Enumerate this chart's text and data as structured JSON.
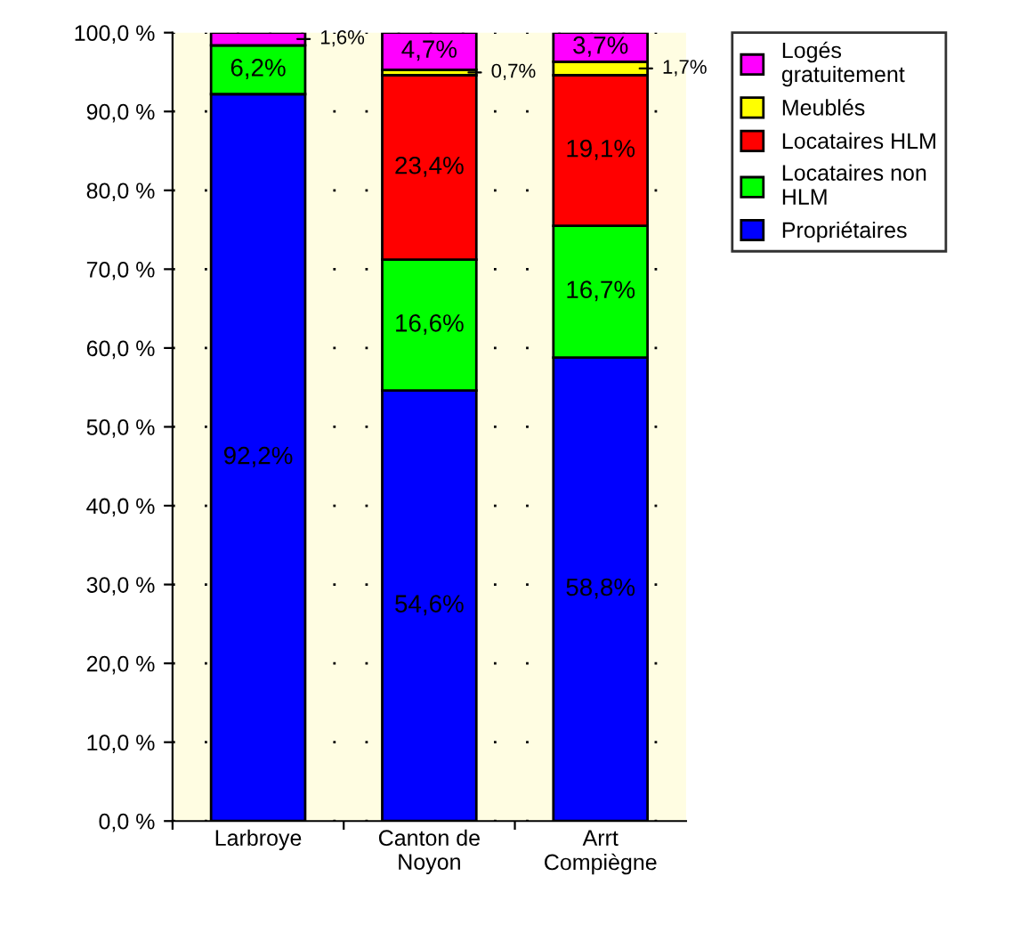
{
  "chart_data": {
    "type": "bar",
    "stacked": true,
    "categories": [
      "Larbroye",
      "Canton de Noyon",
      "Arrt Compiègne"
    ],
    "series": [
      {
        "name": "Propriétaires",
        "color": "#0000ff",
        "values": [
          92.2,
          54.6,
          58.8
        ],
        "value_labels": [
          "92,2%",
          "54,6%",
          "58,8%"
        ]
      },
      {
        "name": "Locataires non HLM",
        "color": "#00ff00",
        "values": [
          6.2,
          16.6,
          16.7
        ],
        "value_labels": [
          "6,2%",
          "16,6%",
          "16,7%"
        ]
      },
      {
        "name": "Locataires HLM",
        "color": "#ff0000",
        "values": [
          0,
          23.4,
          19.1
        ],
        "value_labels": [
          null,
          "23,4%",
          "19,1%"
        ]
      },
      {
        "name": "Meublés",
        "color": "#ffff00",
        "values": [
          0,
          0.7,
          1.7
        ],
        "value_labels": [
          null,
          "0,7%",
          "1,7%"
        ]
      },
      {
        "name": "Logés gratuitement",
        "color": "#ff00ff",
        "values": [
          1.6,
          4.7,
          3.7
        ],
        "value_labels": [
          "1,6%",
          "4,7%",
          "3,7%"
        ]
      }
    ],
    "ylim": [
      0,
      100
    ],
    "yticks": [
      {
        "value": 0,
        "label": "0,0 %"
      },
      {
        "value": 10,
        "label": "10,0 %"
      },
      {
        "value": 20,
        "label": "20,0 %"
      },
      {
        "value": 30,
        "label": "30,0 %"
      },
      {
        "value": 40,
        "label": "40,0 %"
      },
      {
        "value": 50,
        "label": "50,0 %"
      },
      {
        "value": 60,
        "label": "60,0 %"
      },
      {
        "value": 70,
        "label": "70,0 %"
      },
      {
        "value": 80,
        "label": "80,0 %"
      },
      {
        "value": 90,
        "label": "90,0 %"
      },
      {
        "value": 100,
        "label": "100,0 %"
      }
    ],
    "grid": "y",
    "legend": "right"
  }
}
